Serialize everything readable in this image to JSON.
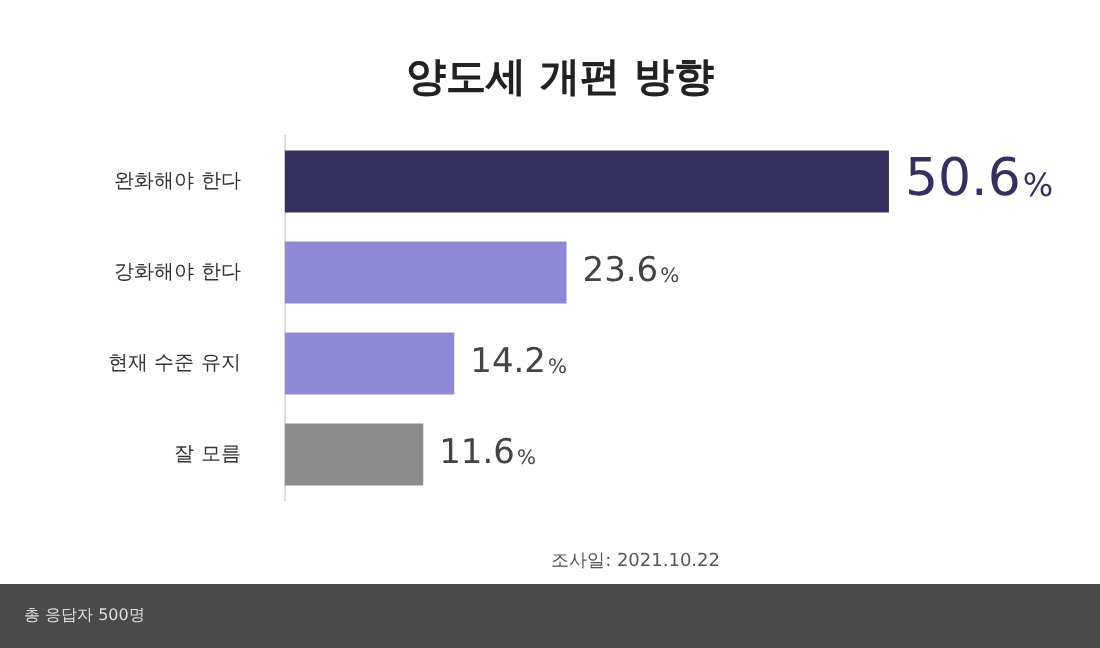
{
  "chart_data": {
    "type": "bar",
    "title": "양도세 개편 방향",
    "orientation": "horizontal",
    "categories": [
      "완화해야 한다",
      "강화해야 한다",
      "현재 수준 유지",
      "잘 모름"
    ],
    "values": [
      50.6,
      23.6,
      14.2,
      11.6
    ],
    "colors": [
      "#35305e",
      "#8f88d6",
      "#8f88d6",
      "#8c8c8c"
    ],
    "value_labels": [
      "50.6%",
      "23.6%",
      "14.2%",
      "11.6%"
    ],
    "tick_labels": "y",
    "grid": false,
    "legend": false,
    "annotations": [
      "조사일: 2021.10.22",
      "총 응답자 500명"
    ]
  }
}
